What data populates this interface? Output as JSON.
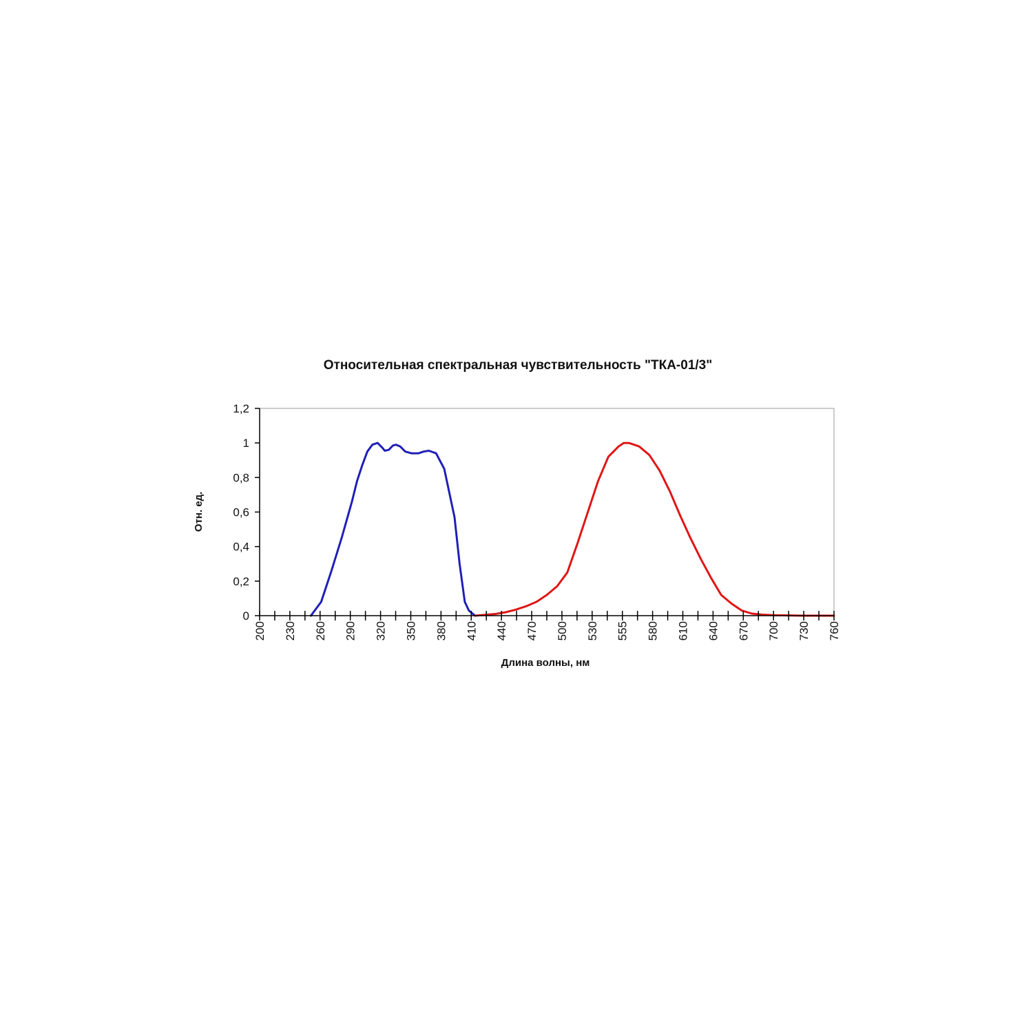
{
  "chart_data": {
    "type": "line",
    "title": "Относительная спектральная чувствительность \"ТКА-01/3\"",
    "xlabel": "Длина волны, нм",
    "ylabel": "Отн. ед.",
    "xlim": [
      200,
      760
    ],
    "ylim": [
      0,
      1.2
    ],
    "x_ticks": [
      "200",
      "230",
      "260",
      "290",
      "320",
      "350",
      "380",
      "410",
      "440",
      "470",
      "500",
      "530",
      "555",
      "580",
      "610",
      "640",
      "670",
      "700",
      "730",
      "760"
    ],
    "y_ticks": [
      {
        "value": 0,
        "label": "0"
      },
      {
        "value": 0.2,
        "label": "0,2"
      },
      {
        "value": 0.4,
        "label": "0,4"
      },
      {
        "value": 0.6,
        "label": "0,6"
      },
      {
        "value": 0.8,
        "label": "0,8"
      },
      {
        "value": 1,
        "label": "1"
      },
      {
        "value": 1.2,
        "label": "1,2"
      }
    ],
    "grid": false,
    "legend": "none",
    "series": [
      {
        "color": "#1f1fb8",
        "points": [
          [
            250,
            0
          ],
          [
            260,
            0.08
          ],
          [
            270,
            0.26
          ],
          [
            280,
            0.45
          ],
          [
            290,
            0.66
          ],
          [
            295,
            0.78
          ],
          [
            300,
            0.87
          ],
          [
            305,
            0.95
          ],
          [
            310,
            0.99
          ],
          [
            315,
            1.0
          ],
          [
            320,
            0.97
          ],
          [
            322,
            0.955
          ],
          [
            326,
            0.96
          ],
          [
            330,
            0.985
          ],
          [
            333,
            0.99
          ],
          [
            337,
            0.98
          ],
          [
            342,
            0.95
          ],
          [
            348,
            0.94
          ],
          [
            355,
            0.94
          ],
          [
            360,
            0.95
          ],
          [
            365,
            0.955
          ],
          [
            372,
            0.94
          ],
          [
            380,
            0.85
          ],
          [
            390,
            0.57
          ],
          [
            395,
            0.3
          ],
          [
            400,
            0.08
          ],
          [
            404,
            0.03
          ],
          [
            410,
            0.0
          ]
        ]
      },
      {
        "color": "#e01515",
        "points": [
          [
            410,
            0
          ],
          [
            420,
            0.005
          ],
          [
            430,
            0.01
          ],
          [
            440,
            0.02
          ],
          [
            450,
            0.035
          ],
          [
            460,
            0.055
          ],
          [
            470,
            0.08
          ],
          [
            480,
            0.12
          ],
          [
            490,
            0.17
          ],
          [
            500,
            0.25
          ],
          [
            510,
            0.42
          ],
          [
            520,
            0.6
          ],
          [
            530,
            0.78
          ],
          [
            540,
            0.92
          ],
          [
            550,
            0.98
          ],
          [
            555,
            1.0
          ],
          [
            560,
            1.0
          ],
          [
            570,
            0.98
          ],
          [
            580,
            0.93
          ],
          [
            590,
            0.84
          ],
          [
            600,
            0.72
          ],
          [
            610,
            0.58
          ],
          [
            620,
            0.45
          ],
          [
            630,
            0.33
          ],
          [
            640,
            0.22
          ],
          [
            650,
            0.12
          ],
          [
            660,
            0.07
          ],
          [
            670,
            0.03
          ],
          [
            680,
            0.012
          ],
          [
            690,
            0.006
          ],
          [
            700,
            0.003
          ],
          [
            710,
            0.002
          ],
          [
            720,
            0.001
          ],
          [
            730,
            0.0
          ],
          [
            740,
            0.0
          ],
          [
            750,
            0.0
          ],
          [
            760,
            0.0
          ]
        ]
      }
    ]
  }
}
